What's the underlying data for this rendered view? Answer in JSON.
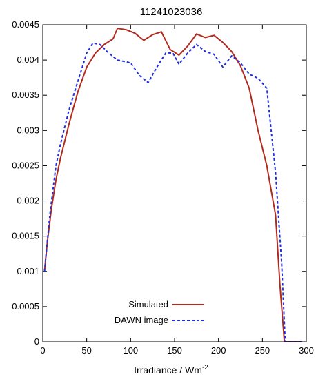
{
  "chart_data": {
    "type": "line",
    "title": "11241023036",
    "xlabel": "Irradiance / Wm",
    "xlabel_sup": "-2",
    "ylabel": "",
    "xlim": [
      0,
      300
    ],
    "ylim": [
      0,
      0.0045
    ],
    "xticks": [
      "0",
      "50",
      "100",
      "150",
      "200",
      "250",
      "300"
    ],
    "yticks": [
      "0",
      "0.0005",
      "0.001",
      "0.0015",
      "0.002",
      "0.0025",
      "0.003",
      "0.0035",
      "0.004",
      "0.0045"
    ],
    "grid": false,
    "legend_position": "bottom-center",
    "series": [
      {
        "name": "Simulated",
        "color": "#b22a1e",
        "style": "solid",
        "points": [
          [
            2,
            0.001
          ],
          [
            5,
            0.0014
          ],
          [
            10,
            0.0019
          ],
          [
            15,
            0.0023
          ],
          [
            20,
            0.0026
          ],
          [
            30,
            0.0031
          ],
          [
            40,
            0.00355
          ],
          [
            50,
            0.0039
          ],
          [
            60,
            0.0041
          ],
          [
            70,
            0.00422
          ],
          [
            80,
            0.0043
          ],
          [
            85,
            0.00445
          ],
          [
            95,
            0.00443
          ],
          [
            105,
            0.00438
          ],
          [
            115,
            0.00428
          ],
          [
            125,
            0.00436
          ],
          [
            135,
            0.0044
          ],
          [
            145,
            0.00415
          ],
          [
            155,
            0.00407
          ],
          [
            165,
            0.0042
          ],
          [
            175,
            0.00437
          ],
          [
            185,
            0.00432
          ],
          [
            195,
            0.00435
          ],
          [
            205,
            0.00425
          ],
          [
            215,
            0.00412
          ],
          [
            225,
            0.00392
          ],
          [
            235,
            0.0036
          ],
          [
            245,
            0.003
          ],
          [
            255,
            0.0025
          ],
          [
            265,
            0.0018
          ],
          [
            270,
            0.0008
          ],
          [
            275,
            0.0
          ],
          [
            295,
            0.0
          ]
        ]
      },
      {
        "name": "DAWN image",
        "color": "#1f2fdc",
        "style": "dashed",
        "points": [
          [
            2,
            0.001
          ],
          [
            8,
            0.0018
          ],
          [
            15,
            0.0025
          ],
          [
            20,
            0.0028
          ],
          [
            30,
            0.0033
          ],
          [
            40,
            0.0037
          ],
          [
            50,
            0.0041
          ],
          [
            57,
            0.00424
          ],
          [
            65,
            0.00422
          ],
          [
            75,
            0.0041
          ],
          [
            85,
            0.004
          ],
          [
            100,
            0.00396
          ],
          [
            110,
            0.00378
          ],
          [
            120,
            0.00368
          ],
          [
            130,
            0.0039
          ],
          [
            140,
            0.0041
          ],
          [
            148,
            0.0041
          ],
          [
            155,
            0.00394
          ],
          [
            165,
            0.0041
          ],
          [
            175,
            0.00422
          ],
          [
            185,
            0.00412
          ],
          [
            195,
            0.00408
          ],
          [
            205,
            0.0039
          ],
          [
            215,
            0.00406
          ],
          [
            225,
            0.00396
          ],
          [
            235,
            0.0038
          ],
          [
            245,
            0.00374
          ],
          [
            255,
            0.0036
          ],
          [
            265,
            0.0024
          ],
          [
            272,
            0.0011
          ],
          [
            276,
            0.0
          ],
          [
            295,
            0.0
          ]
        ]
      }
    ]
  }
}
